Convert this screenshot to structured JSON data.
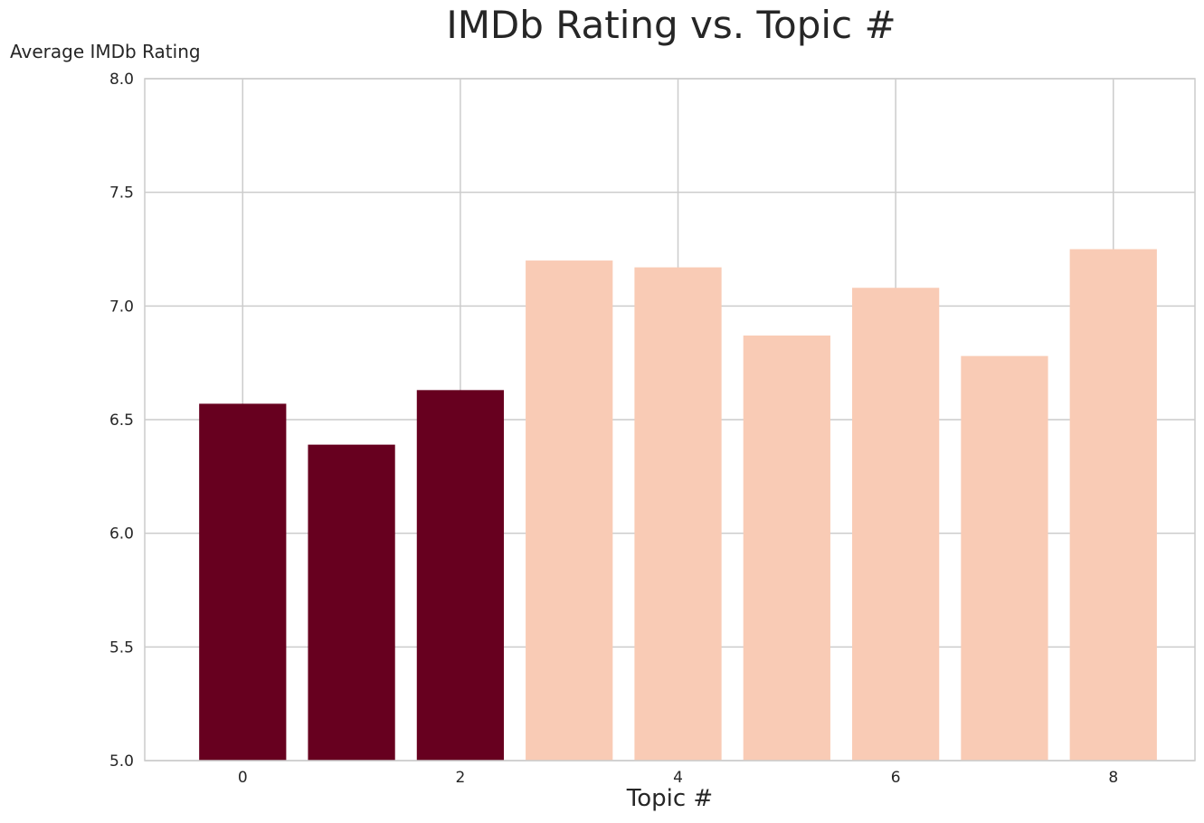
{
  "chart_data": {
    "type": "bar",
    "title": "IMDb Rating vs. Topic #",
    "xlabel": "Topic #",
    "ylabel": "Average IMDb Rating",
    "categories": [
      0,
      1,
      2,
      3,
      4,
      5,
      6,
      7,
      8
    ],
    "values": [
      6.57,
      6.39,
      6.63,
      7.2,
      7.17,
      6.87,
      7.08,
      6.78,
      7.25
    ],
    "bar_colors": [
      "#67001f",
      "#67001f",
      "#67001f",
      "#f9cbb5",
      "#f9cbb5",
      "#f9cbb5",
      "#f9cbb5",
      "#f9cbb5",
      "#f9cbb5"
    ],
    "xlim": [
      -0.9,
      8.75
    ],
    "ylim": [
      5.0,
      8.0
    ],
    "xticks": [
      0,
      2,
      4,
      6,
      8
    ],
    "yticks": [
      "5.0",
      "5.5",
      "6.0",
      "6.5",
      "7.0",
      "7.5",
      "8.0"
    ],
    "grid": true,
    "legend": "none"
  }
}
